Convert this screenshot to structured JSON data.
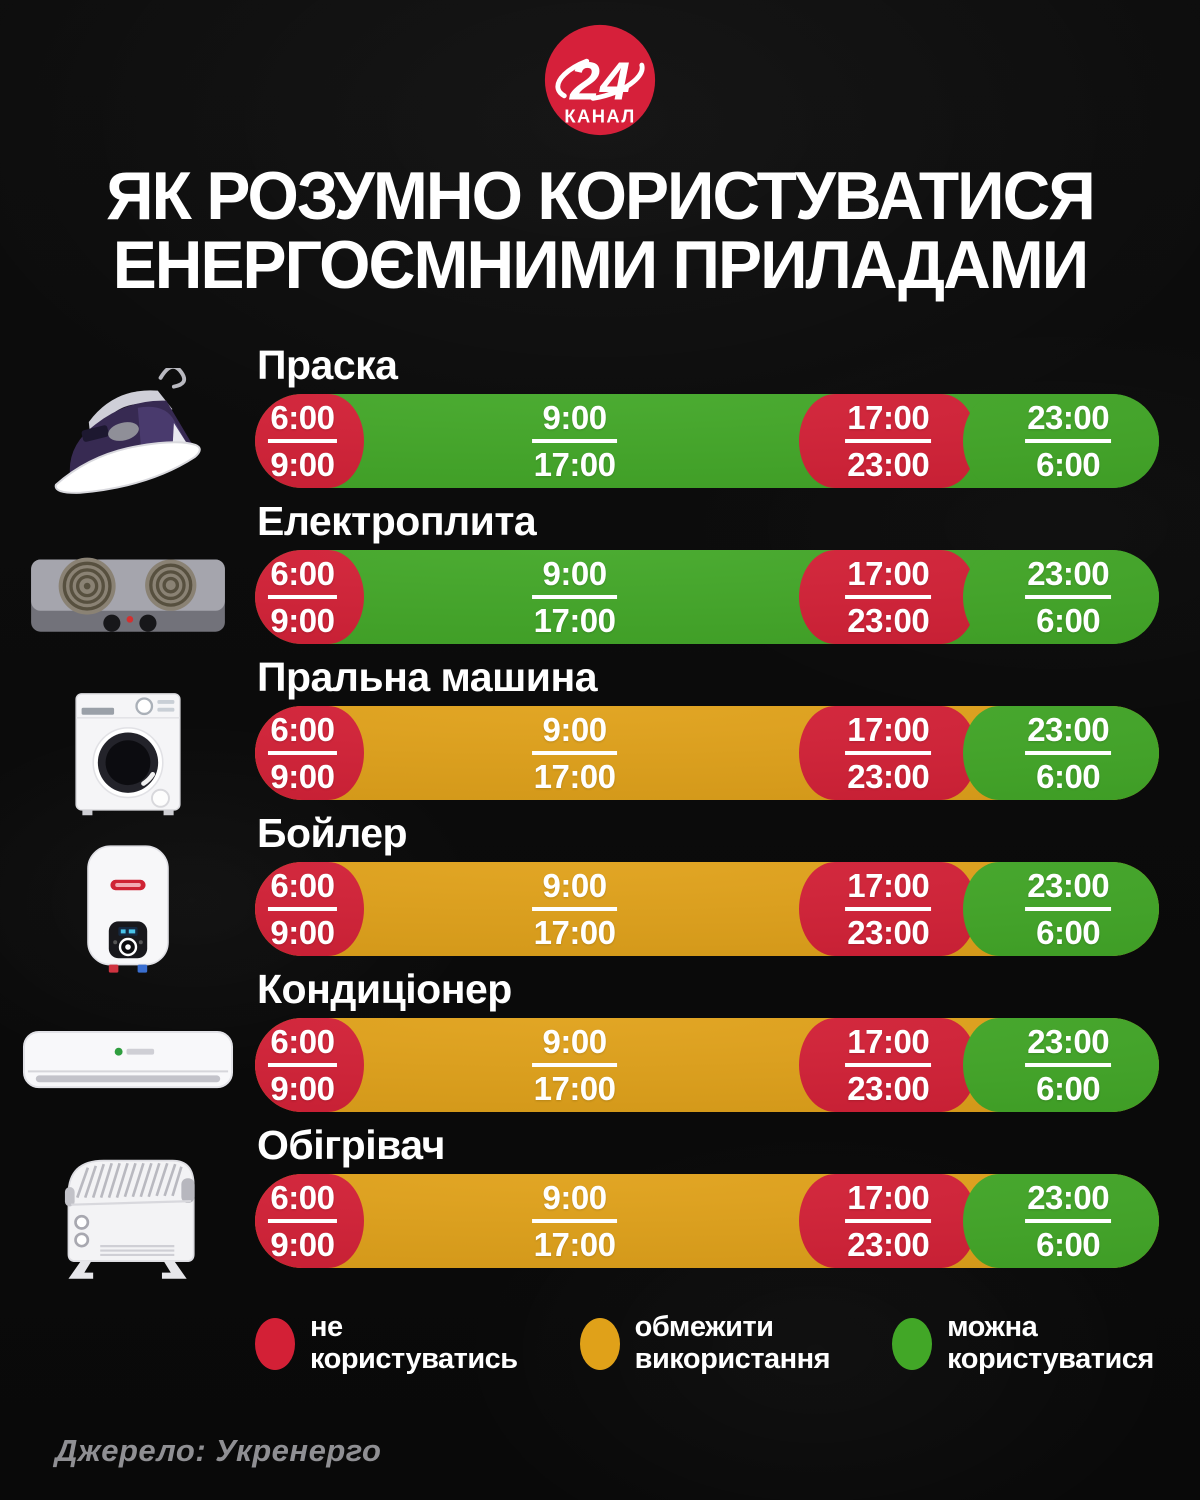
{
  "logo": {
    "number": "24",
    "label": "КАНАЛ",
    "color": "#d6203a"
  },
  "title": {
    "line1": "ЯК РОЗУМНО КОРИСТУВАТИСЯ",
    "line2": "ЕНЕРГОЄМНИМИ ПРИЛАДАМИ"
  },
  "chart_data": {
    "type": "table",
    "title": "Як розумно користуватися енергоємними приладами",
    "time_slots": [
      {
        "from": "6:00",
        "to": "9:00"
      },
      {
        "from": "9:00",
        "to": "17:00"
      },
      {
        "from": "17:00",
        "to": "23:00"
      },
      {
        "from": "23:00",
        "to": "6:00"
      }
    ],
    "slot_width_pct": [
      10.5,
      49.7,
      19.7,
      20.1
    ],
    "status_colors": {
      "no": "#d32036",
      "limit": "#e0a119",
      "ok": "#42a727"
    },
    "status_labels": {
      "no": "не користуватись",
      "limit": "обмежити використання",
      "ok": "можна користуватися"
    },
    "rows": [
      {
        "title": "Праска",
        "icon": "iron",
        "statuses": [
          "no",
          "ok",
          "no",
          "ok"
        ]
      },
      {
        "title": "Електроплита",
        "icon": "stove",
        "statuses": [
          "no",
          "ok",
          "no",
          "ok"
        ]
      },
      {
        "title": "Пральна машина",
        "icon": "washer",
        "statuses": [
          "no",
          "limit",
          "no",
          "ok"
        ]
      },
      {
        "title": "Бойлер",
        "icon": "boiler",
        "statuses": [
          "no",
          "limit",
          "no",
          "ok"
        ]
      },
      {
        "title": "Кондиціонер",
        "icon": "ac",
        "statuses": [
          "no",
          "limit",
          "no",
          "ok"
        ]
      },
      {
        "title": "Обігрівач",
        "icon": "heater",
        "statuses": [
          "no",
          "limit",
          "no",
          "ok"
        ]
      }
    ]
  },
  "legend": {
    "items": [
      {
        "status": "no",
        "lines": [
          "не",
          "користуватись"
        ]
      },
      {
        "status": "limit",
        "lines": [
          "обмежити",
          "використання"
        ]
      },
      {
        "status": "ok",
        "lines": [
          "можна",
          "користуватися"
        ]
      }
    ]
  },
  "source": {
    "label": "Джерело: Укренерго"
  }
}
